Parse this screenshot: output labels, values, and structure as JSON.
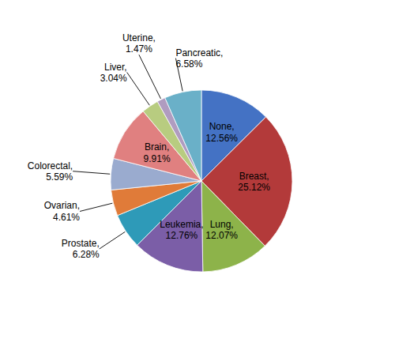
{
  "chart_data": {
    "type": "pie",
    "categories": [
      "None,",
      "Breast,",
      "Lung,",
      "Leukemia,",
      "Prostate,",
      "Ovarian,",
      "Colorectal,",
      "Brain,",
      "Liver,",
      "Uterine,",
      "Pancreatic,"
    ],
    "values": [
      12.56,
      25.12,
      12.07,
      12.76,
      6.28,
      4.61,
      5.59,
      9.91,
      3.04,
      1.47,
      6.58
    ],
    "value_labels": [
      "12.56%",
      "25.12%",
      "12.07%",
      "12.76%",
      "6.28%",
      "4.61%",
      "5.59%",
      "9.91%",
      "3.04%",
      "1.47%",
      "6.58%"
    ],
    "colors": [
      "#4472c4",
      "#b33a3a",
      "#8db34a",
      "#7b5ea7",
      "#2e9ab8",
      "#e07b39",
      "#9aabcf",
      "#e08080",
      "#b8cc80",
      "#b09cc0",
      "#6ab0c8"
    ],
    "data_labels": true
  }
}
